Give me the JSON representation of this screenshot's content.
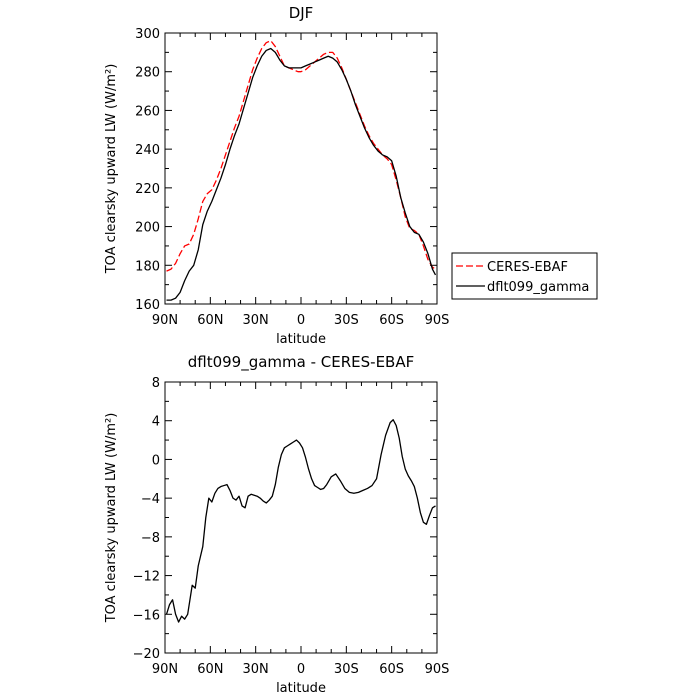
{
  "chart_data": [
    {
      "type": "line",
      "title": "DJF",
      "xlabel": "latitude",
      "ylabel": "TOA clearsky upward LW (W/m²)",
      "xlim": [
        -90,
        90
      ],
      "ylim": [
        160,
        300
      ],
      "x_ticks": [
        -90,
        -60,
        -30,
        0,
        30,
        60,
        90
      ],
      "x_tick_labels": [
        "90N",
        "60N",
        "30N",
        "0",
        "30S",
        "60S",
        "90S"
      ],
      "y_ticks": [
        160,
        180,
        200,
        220,
        240,
        260,
        280,
        300
      ],
      "y_tick_labels": [
        "160",
        "180",
        "200",
        "220",
        "240",
        "260",
        "280",
        "300"
      ],
      "legend_position": "right",
      "series": [
        {
          "name": "CERES-EBAF",
          "color": "#ff0000",
          "dash": "dashed",
          "x": [
            -89,
            -86,
            -83,
            -80,
            -77,
            -74,
            -71,
            -68,
            -65,
            -62,
            -59,
            -56,
            -53,
            -50,
            -47,
            -44,
            -41,
            -38,
            -35,
            -32,
            -29,
            -26,
            -23,
            -20,
            -17,
            -14,
            -11,
            -8,
            -5,
            -2,
            0,
            3,
            6,
            9,
            12,
            15,
            18,
            21,
            24,
            27,
            30,
            33,
            36,
            39,
            42,
            45,
            48,
            51,
            54,
            57,
            60,
            63,
            66,
            69,
            72,
            75,
            78,
            81,
            84,
            87,
            89
          ],
          "y": [
            177,
            178,
            181,
            186,
            190,
            191,
            196,
            204,
            213,
            217,
            219,
            224,
            230,
            237,
            244,
            251,
            257,
            265,
            273,
            281,
            287,
            292,
            295,
            296,
            293,
            288,
            283,
            282,
            281,
            280,
            280,
            281,
            283,
            285,
            287,
            289,
            290,
            290,
            287,
            282,
            276,
            270,
            264,
            258,
            252,
            247,
            243,
            240,
            237,
            235,
            232,
            224,
            215,
            205,
            199,
            198,
            196,
            190,
            183,
            179,
            178
          ]
        },
        {
          "name": "dflt099_gamma",
          "color": "#000000",
          "dash": "solid",
          "x": [
            -89,
            -86,
            -83,
            -80,
            -77,
            -74,
            -71,
            -68,
            -65,
            -62,
            -59,
            -56,
            -53,
            -50,
            -47,
            -44,
            -41,
            -38,
            -35,
            -32,
            -29,
            -26,
            -23,
            -20,
            -17,
            -14,
            -11,
            -8,
            -5,
            -2,
            0,
            3,
            6,
            9,
            12,
            15,
            18,
            21,
            24,
            27,
            30,
            33,
            36,
            39,
            42,
            45,
            48,
            51,
            54,
            57,
            60,
            63,
            66,
            69,
            72,
            75,
            78,
            81,
            84,
            87,
            89
          ],
          "y": [
            162,
            162,
            163,
            166,
            172,
            177,
            180,
            188,
            201,
            208,
            213,
            219,
            225,
            232,
            240,
            247,
            253,
            261,
            269,
            277,
            283,
            288,
            291,
            292,
            290,
            286,
            283,
            282,
            282,
            282,
            282,
            283,
            284,
            285,
            286,
            287,
            288,
            287,
            285,
            281,
            276,
            270,
            263,
            257,
            251,
            246,
            242,
            239,
            237,
            236,
            234,
            226,
            215,
            207,
            200,
            197,
            196,
            192,
            186,
            178,
            175
          ]
        }
      ]
    },
    {
      "type": "line",
      "title": "dflt099_gamma - CERES-EBAF",
      "xlabel": "latitude",
      "ylabel": "TOA clearsky upward LW (W/m²)",
      "xlim": [
        -90,
        90
      ],
      "ylim": [
        -20,
        8
      ],
      "x_ticks": [
        -90,
        -60,
        -30,
        0,
        30,
        60,
        90
      ],
      "x_tick_labels": [
        "90N",
        "60N",
        "30N",
        "0",
        "30S",
        "60S",
        "90S"
      ],
      "y_ticks": [
        -20,
        -16,
        -12,
        -8,
        -4,
        0,
        4,
        8
      ],
      "y_tick_labels": [
        "−20",
        "−16",
        "−12",
        "−8",
        "−4",
        "0",
        "4",
        "8"
      ],
      "series": [
        {
          "color": "#000000",
          "dash": "solid",
          "x": [
            -89,
            -87,
            -85,
            -83,
            -81,
            -79,
            -77,
            -75,
            -72,
            -70,
            -68,
            -65,
            -63,
            -61,
            -59,
            -57,
            -55,
            -53,
            -51,
            -49,
            -47,
            -45,
            -43,
            -41,
            -39,
            -37,
            -35,
            -33,
            -31,
            -29,
            -27,
            -25,
            -23,
            -21,
            -19,
            -17,
            -15,
            -13,
            -11,
            -9,
            -7,
            -5,
            -3,
            -1,
            1,
            3,
            5,
            7,
            9,
            11,
            13,
            15,
            17,
            20,
            23,
            26,
            29,
            32,
            35,
            38,
            41,
            44,
            47,
            50,
            53,
            56,
            59,
            61,
            63,
            65,
            67,
            69,
            71,
            73,
            75,
            77,
            79,
            81,
            83,
            85,
            87,
            89
          ],
          "y": [
            -16,
            -15,
            -14.5,
            -16,
            -16.8,
            -16.2,
            -16.5,
            -16,
            -13,
            -13.3,
            -11,
            -9,
            -6,
            -4,
            -4.4,
            -3.5,
            -3,
            -2.8,
            -2.7,
            -2.6,
            -3.2,
            -4,
            -4.2,
            -3.8,
            -4.8,
            -5,
            -3.8,
            -3.6,
            -3.7,
            -3.8,
            -4,
            -4.3,
            -4.5,
            -4.2,
            -3.8,
            -2.6,
            -0.8,
            0.5,
            1.2,
            1.4,
            1.6,
            1.8,
            2,
            1.7,
            1.2,
            0.2,
            -1,
            -2,
            -2.7,
            -2.9,
            -3.1,
            -3,
            -2.6,
            -1.8,
            -1.5,
            -2.2,
            -3,
            -3.4,
            -3.5,
            -3.4,
            -3.2,
            -3,
            -2.7,
            -2,
            0.5,
            2.5,
            3.8,
            4.1,
            3.5,
            2.2,
            0.3,
            -1,
            -1.7,
            -2.2,
            -2.8,
            -4,
            -5.5,
            -6.5,
            -6.7,
            -5.8,
            -5,
            -4.8
          ]
        }
      ]
    }
  ]
}
